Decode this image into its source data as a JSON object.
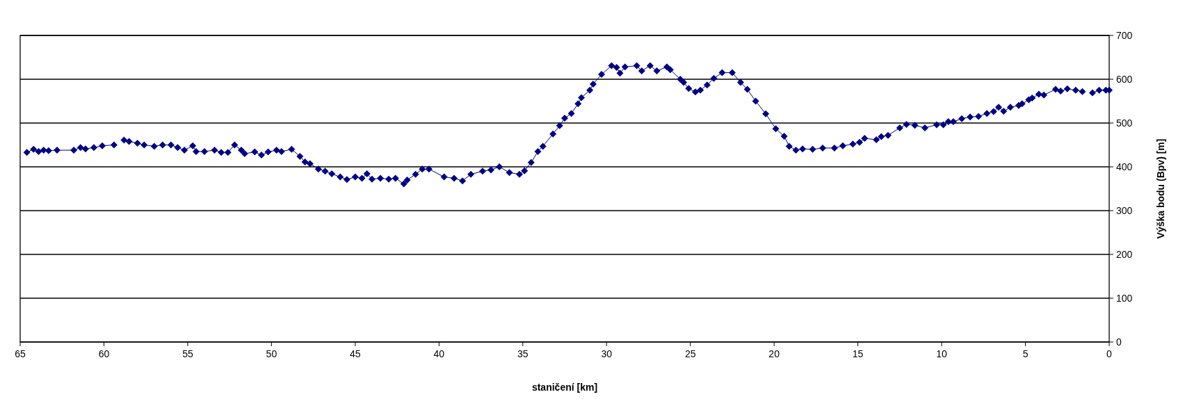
{
  "chart_data": {
    "type": "line",
    "xlabel": "staničení [km]",
    "ylabel": "Výška bodu (Bpv) [m]",
    "xlim": [
      65,
      0
    ],
    "xticks": [
      65,
      60,
      55,
      50,
      45,
      40,
      35,
      30,
      25,
      20,
      15,
      10,
      5,
      0
    ],
    "ylim": [
      0,
      700
    ],
    "yticks": [
      0,
      100,
      200,
      300,
      400,
      500,
      600,
      700
    ],
    "grid": "y",
    "marker": "diamond",
    "line_style": "solid",
    "series": [
      {
        "color": "#000080",
        "x": [
          64.6,
          64.2,
          63.9,
          63.6,
          63.3,
          62.8,
          61.8,
          61.4,
          61.1,
          60.6,
          60.1,
          59.4,
          59.1,
          58.8,
          58.5,
          58.0,
          57.6,
          57.0,
          56.5,
          56.0,
          55.6,
          55.2,
          54.7,
          54.5,
          54.0,
          53.4,
          53.0,
          52.6,
          52.2,
          51.8,
          51.6,
          51.0,
          50.6,
          50.2,
          49.7,
          49.4,
          48.8,
          48.3,
          48.0,
          47.7,
          47.2,
          46.8,
          46.4,
          45.9,
          45.5,
          45.0,
          44.6,
          44.3,
          44.0,
          43.5,
          43.0,
          42.6,
          42.1,
          41.9,
          41.4,
          41.0,
          40.6,
          39.7,
          39.1,
          38.6,
          38.1,
          37.4,
          36.9,
          36.4,
          35.8,
          35.2,
          34.9,
          34.5,
          34.1,
          33.8,
          33.2,
          32.8,
          32.5,
          32.1,
          31.7,
          31.5,
          31.0,
          30.8,
          30.3,
          29.7,
          29.4,
          29.2,
          28.9,
          28.2,
          27.9,
          27.4,
          27.0,
          26.4,
          26.2,
          25.6,
          25.4,
          25.1,
          24.7,
          24.4,
          24.0,
          23.6,
          23.1,
          22.5,
          22.0,
          21.6,
          21.1,
          20.5,
          19.9,
          19.4,
          19.1,
          18.7,
          18.3,
          17.7,
          17.1,
          16.4,
          15.9,
          15.3,
          14.9,
          14.6,
          13.9,
          13.6,
          13.2,
          12.5,
          12.1,
          11.6,
          11.0,
          10.3,
          9.9,
          9.6,
          9.3,
          8.8,
          8.3,
          7.8,
          7.3,
          6.9,
          6.6,
          6.3,
          5.9,
          5.4,
          5.2,
          4.8,
          4.6,
          4.2,
          3.9,
          3.2,
          2.9,
          2.5,
          2.0,
          1.6,
          1.3,
          1.0,
          0.6,
          0.2,
          0.0
        ],
        "values": [
          433,
          440,
          435,
          438,
          437,
          438,
          438,
          444,
          441,
          444,
          448,
          450,
          null,
          461,
          458,
          454,
          450,
          447,
          450,
          450,
          444,
          438,
          448,
          435,
          435,
          438,
          433,
          433,
          450,
          438,
          430,
          434,
          427,
          434,
          438,
          435,
          440,
          424,
          411,
          407,
          395,
          390,
          384,
          377,
          371,
          377,
          374,
          384,
          372,
          374,
          372,
          374,
          361,
          370,
          383,
          395,
          395,
          377,
          374,
          368,
          383,
          390,
          393,
          400,
          387,
          383,
          391,
          410,
          435,
          447,
          475,
          494,
          511,
          522,
          544,
          558,
          575,
          589,
          611,
          631,
          627,
          614,
          628,
          631,
          619,
          631,
          619,
          628,
          622,
          600,
          593,
          579,
          571,
          575,
          587,
          602,
          615,
          615,
          593,
          577,
          550,
          521,
          487,
          470,
          447,
          438,
          441,
          440,
          443,
          443,
          448,
          452,
          456,
          465,
          462,
          469,
          472,
          489,
          497,
          495,
          489,
          496,
          496,
          503,
          503,
          510,
          514,
          515,
          522,
          526,
          536,
          527,
          536,
          540,
          544,
          553,
          557,
          566,
          564,
          577,
          573,
          578,
          575,
          572,
          null,
          569,
          575,
          575,
          575
        ]
      }
    ]
  }
}
